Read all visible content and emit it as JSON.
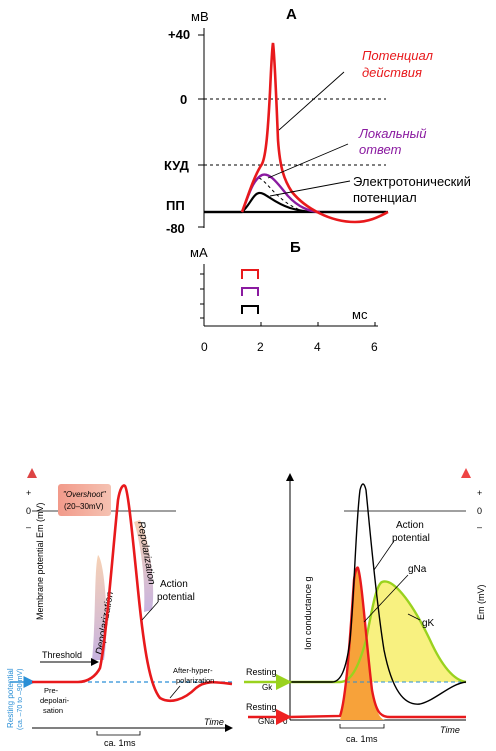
{
  "top": {
    "title_a": "А",
    "unit_mv": "мВ",
    "tick_plus40": "+40",
    "tick_0": "0",
    "tick_kud": "КУД",
    "tick_pp": "ПП",
    "tick_minus80": "-80",
    "label_action_1": "Потенциал",
    "label_action_2": "действия",
    "label_local_1": "Локальный",
    "label_local_2": "ответ",
    "label_electro_1": "Электротонический",
    "label_electro_2": "потенциал",
    "colors": {
      "action": "#e8191c",
      "local": "#8a1aa0",
      "electro": "#000000"
    }
  },
  "stim": {
    "title_b": "Б",
    "unit_ma": "мА",
    "unit_ms": "мс",
    "x_ticks": [
      "0",
      "2",
      "4",
      "6"
    ]
  },
  "left": {
    "overshoot_1": "\"Overshoot\"",
    "overshoot_2": "(20–30mV)",
    "plus": "+",
    "zero": "0",
    "minus": "–",
    "y_axis_label": "Membrane potential Em (mV)",
    "resting_axis_1": "Resting potential",
    "resting_axis_2": "(ca. –70 to –90 mV)",
    "depolarization": "Depolarization",
    "repolarization": "Repolarization",
    "action_1": "Action",
    "action_2": "potential",
    "threshold": "Threshold",
    "after_1": "After-hyper-",
    "after_2": "polarization",
    "pre_1": "Pre-",
    "pre_2": "depolari-",
    "pre_3": "sation",
    "time": "Time",
    "scale": "ca. 1ms"
  },
  "right": {
    "y_axis_label": "Ion conductance g",
    "em_axis_label": "Em (mV)",
    "plus": "+",
    "zero": "0",
    "minus": "–",
    "action_1": "Action",
    "action_2": "potential",
    "gna": "gNa",
    "gk": "gK",
    "resting_1": "Resting",
    "gk_small": "Gk",
    "resting_2": "Resting",
    "gna_small": "GNa",
    "zero_small": "0",
    "time": "Time",
    "scale": "ca. 1ms"
  }
}
